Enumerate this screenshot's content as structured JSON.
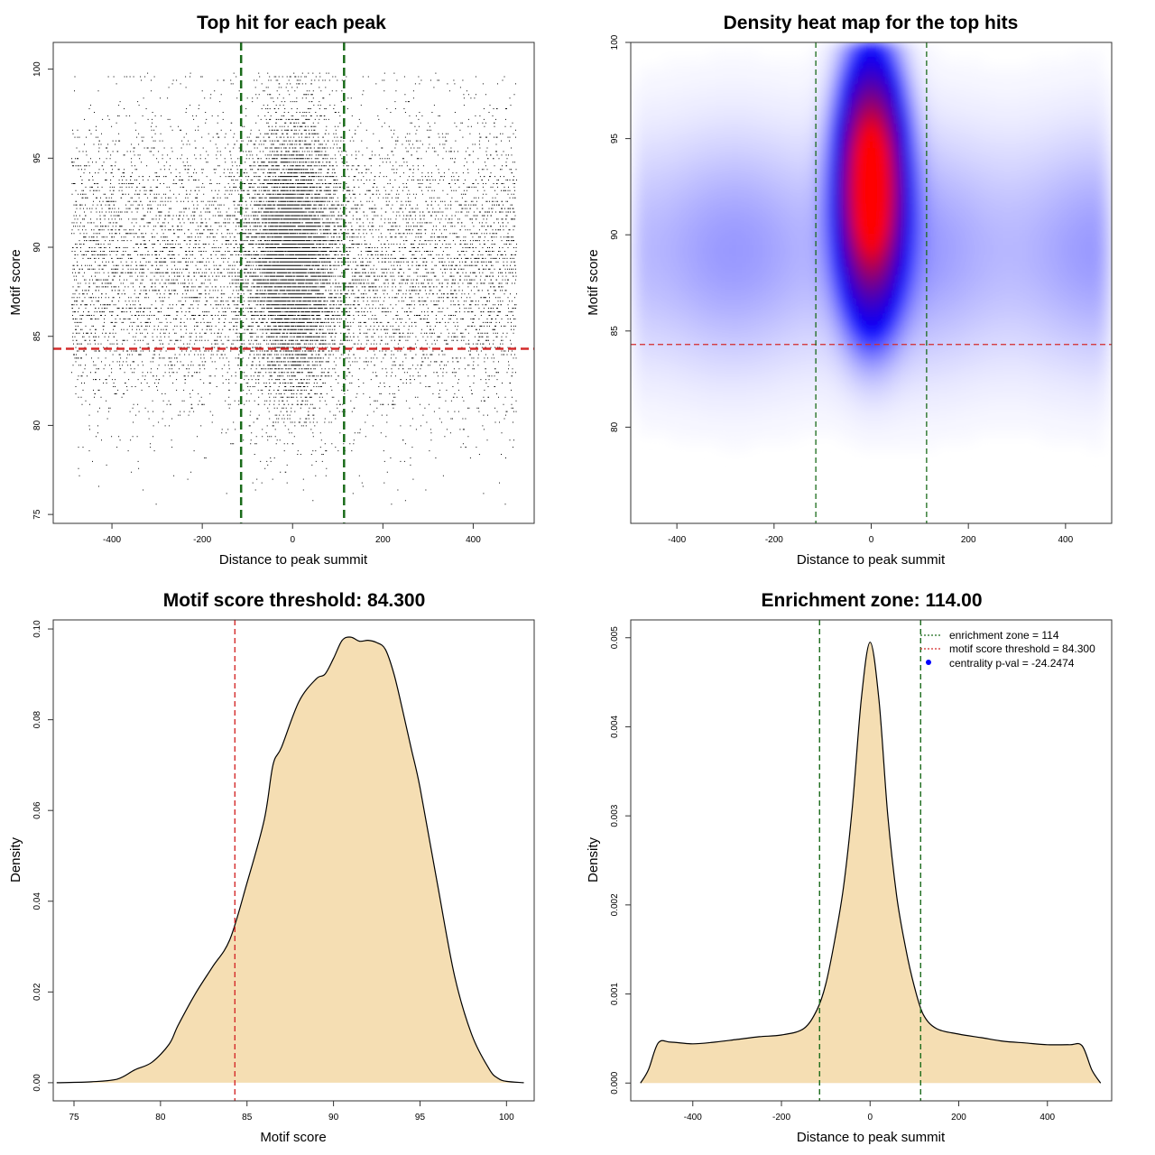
{
  "colors": {
    "threshold_line": "#d42a2a",
    "zone_line": "#1a6b1a",
    "density_fill": "#f5deb3",
    "heat_low": "#ffffff",
    "heat_mid": "#0000ff",
    "heat_high": "#ff0000",
    "points": "#000000",
    "legend_point": "#0000ff"
  },
  "chart_data": [
    {
      "type": "scatter",
      "title": "Top hit for each peak",
      "xlabel": "Distance to peak summit",
      "ylabel": "Motif score",
      "xlim": [
        -530,
        535
      ],
      "ylim": [
        74.5,
        101.5
      ],
      "xticks": [
        -400,
        -200,
        0,
        200,
        400
      ],
      "yticks": [
        75,
        80,
        85,
        90,
        95,
        100
      ],
      "point_distribution": {
        "n_points": 16000,
        "central_fraction": 0.45,
        "central_x_mean": 0,
        "central_x_sd": 48,
        "central_y_mean": 89.5,
        "central_y_sd": 3.8,
        "background_x_range": [
          -490,
          495
        ],
        "background_y_mean": 89,
        "background_y_sd": 4.3
      },
      "hlines": [
        {
          "y": 84.3,
          "label": "motif score threshold",
          "style": "dashed",
          "color": "red"
        }
      ],
      "vlines": [
        {
          "x": -114,
          "label": "enrichment zone",
          "style": "dashed",
          "color": "darkgreen"
        },
        {
          "x": 114,
          "label": "enrichment zone",
          "style": "dashed",
          "color": "darkgreen"
        }
      ],
      "grid": false
    },
    {
      "type": "heatmap",
      "title": "Density heat map for the top hits",
      "xlabel": "Distance to peak summit",
      "ylabel": "Motif score",
      "xlim": [
        -495,
        495
      ],
      "ylim": [
        75,
        100
      ],
      "xticks": [
        -400,
        -200,
        0,
        200,
        400
      ],
      "yticks": [
        80,
        85,
        90,
        95,
        100
      ],
      "colorscale": [
        "white",
        "blue",
        "red"
      ],
      "density_peak": {
        "x": 0,
        "y": 92.5
      },
      "hlines": [
        {
          "y": 84.3,
          "style": "dashed",
          "color": "red"
        }
      ],
      "vlines": [
        {
          "x": -114,
          "style": "dashed",
          "color": "darkgreen"
        },
        {
          "x": 114,
          "style": "dashed",
          "color": "darkgreen"
        }
      ]
    },
    {
      "type": "area",
      "title": "Motif score threshold: 84.300",
      "xlabel": "Motif score",
      "ylabel": "Density",
      "xlim": [
        73.8,
        101.6
      ],
      "ylim": [
        -0.004,
        0.102
      ],
      "xticks": [
        75,
        80,
        85,
        90,
        95,
        100
      ],
      "yticks": [
        0.0,
        0.02,
        0.04,
        0.06,
        0.08,
        0.1
      ],
      "ytick_labels": [
        "0.00",
        "0.02",
        "0.04",
        "0.06",
        "0.08",
        "0.10"
      ],
      "x": [
        74.0,
        76.0,
        77.5,
        78.5,
        79.5,
        80.5,
        81.0,
        82.0,
        83.0,
        84.0,
        85.0,
        86.0,
        86.5,
        87.0,
        88.0,
        89.0,
        89.5,
        90.0,
        90.5,
        91.0,
        91.5,
        92.0,
        92.5,
        93.0,
        93.5,
        94.0,
        94.5,
        95.0,
        96.0,
        97.0,
        98.0,
        99.0,
        99.5,
        100.0,
        101.0
      ],
      "y": [
        0.0,
        0.0002,
        0.0008,
        0.0028,
        0.0045,
        0.0085,
        0.0125,
        0.0195,
        0.0255,
        0.0315,
        0.044,
        0.058,
        0.07,
        0.074,
        0.084,
        0.089,
        0.09,
        0.0935,
        0.0975,
        0.0982,
        0.0973,
        0.0975,
        0.097,
        0.0955,
        0.09,
        0.082,
        0.0735,
        0.065,
        0.044,
        0.0235,
        0.0105,
        0.003,
        0.001,
        0.0003,
        0.0
      ],
      "vlines": [
        {
          "x": 84.3,
          "style": "dashed",
          "color": "red"
        }
      ],
      "grid": false
    },
    {
      "type": "area",
      "title": "Enrichment zone: 114.00",
      "xlabel": "Distance to peak summit",
      "ylabel": "Density",
      "xlim": [
        -540,
        545
      ],
      "ylim": [
        -0.0002,
        0.0052
      ],
      "xticks": [
        -400,
        -200,
        0,
        200,
        400
      ],
      "yticks": [
        0.0,
        0.001,
        0.002,
        0.003,
        0.004,
        0.005
      ],
      "ytick_labels": [
        "0.000",
        "0.001",
        "0.002",
        "0.003",
        "0.004",
        "0.005"
      ],
      "x": [
        -518,
        -500,
        -478,
        -450,
        -400,
        -350,
        -300,
        -250,
        -200,
        -150,
        -120,
        -100,
        -80,
        -60,
        -40,
        -20,
        0,
        20,
        40,
        60,
        80,
        100,
        120,
        150,
        200,
        250,
        300,
        350,
        400,
        450,
        478,
        500,
        520
      ],
      "y": [
        0.0,
        0.00015,
        0.00045,
        0.00046,
        0.00044,
        0.00046,
        0.00049,
        0.00052,
        0.00054,
        0.00061,
        0.00082,
        0.00111,
        0.0016,
        0.0022,
        0.0031,
        0.0043,
        0.00495,
        0.0043,
        0.003,
        0.0021,
        0.00152,
        0.00108,
        0.00077,
        0.00061,
        0.00055,
        0.00051,
        0.00047,
        0.00045,
        0.00043,
        0.00043,
        0.00042,
        0.00015,
        0.0
      ],
      "vlines": [
        {
          "x": -114,
          "style": "dashed",
          "color": "darkgreen"
        },
        {
          "x": 114,
          "style": "dashed",
          "color": "darkgreen"
        }
      ],
      "legend": {
        "position": "top-right",
        "items": [
          {
            "label": "enrichment zone = 114",
            "kind": "dotted-line",
            "color": "darkgreen"
          },
          {
            "label": "motif score threshold = 84.300",
            "kind": "dotted-line",
            "color": "red"
          },
          {
            "label": "centrality p-val = -24.2474",
            "kind": "point",
            "color": "blue"
          }
        ]
      },
      "grid": false
    }
  ]
}
